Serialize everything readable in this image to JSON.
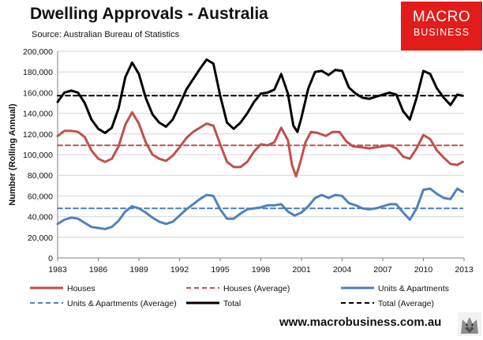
{
  "header": {
    "title": "Dwelling Approvals - Australia",
    "source": "Source: Australian Bureau of Statistics"
  },
  "logo": {
    "line1": "MACRO",
    "line2": "BUSINESS",
    "color": "#e21b1b"
  },
  "footer": {
    "url": "www.macrobusiness.com.au",
    "icon": "wolf-logo-icon"
  },
  "chart_data": {
    "type": "line",
    "title": "Dwelling Approvals - Australia",
    "xlabel": "",
    "ylabel": "Number (Rolling Annual)",
    "xlim": [
      1983,
      2013
    ],
    "ylim": [
      0,
      200000
    ],
    "x_ticks": [
      1983,
      1986,
      1989,
      1992,
      1995,
      1998,
      2001,
      2004,
      2007,
      2010,
      2013
    ],
    "y_ticks": [
      0,
      20000,
      40000,
      60000,
      80000,
      100000,
      120000,
      140000,
      160000,
      180000,
      200000
    ],
    "y_tick_labels": [
      "0",
      "20,000",
      "40,000",
      "60,000",
      "80,000",
      "100,000",
      "120,000",
      "140,000",
      "160,000",
      "180,000",
      "200,000"
    ],
    "grid": "horizontal",
    "legend_position": "bottom",
    "series": [
      {
        "name": "Houses",
        "color": "#c0504d",
        "style": "solid",
        "points": [
          [
            1983.0,
            118000
          ],
          [
            1983.5,
            123000
          ],
          [
            1984.0,
            123000
          ],
          [
            1984.5,
            122000
          ],
          [
            1985.0,
            117000
          ],
          [
            1985.5,
            104000
          ],
          [
            1986.0,
            96000
          ],
          [
            1986.5,
            93000
          ],
          [
            1987.0,
            96000
          ],
          [
            1987.5,
            108000
          ],
          [
            1988.0,
            129000
          ],
          [
            1988.5,
            141000
          ],
          [
            1989.0,
            130000
          ],
          [
            1989.5,
            112000
          ],
          [
            1990.0,
            100000
          ],
          [
            1990.5,
            96000
          ],
          [
            1991.0,
            94000
          ],
          [
            1991.5,
            99000
          ],
          [
            1992.0,
            107000
          ],
          [
            1992.5,
            116000
          ],
          [
            1993.0,
            122000
          ],
          [
            1993.5,
            126000
          ],
          [
            1994.0,
            130000
          ],
          [
            1994.5,
            128000
          ],
          [
            1995.0,
            110000
          ],
          [
            1995.5,
            93000
          ],
          [
            1996.0,
            88000
          ],
          [
            1996.5,
            88000
          ],
          [
            1997.0,
            93000
          ],
          [
            1997.5,
            103000
          ],
          [
            1998.0,
            110000
          ],
          [
            1998.5,
            109000
          ],
          [
            1999.0,
            112000
          ],
          [
            1999.5,
            126000
          ],
          [
            2000.0,
            114000
          ],
          [
            2000.3,
            90000
          ],
          [
            2000.6,
            79000
          ],
          [
            2000.9,
            92000
          ],
          [
            2001.3,
            112000
          ],
          [
            2001.7,
            122000
          ],
          [
            2002.2,
            121000
          ],
          [
            2002.8,
            118000
          ],
          [
            2003.3,
            122000
          ],
          [
            2003.8,
            122000
          ],
          [
            2004.3,
            113000
          ],
          [
            2004.8,
            108000
          ],
          [
            2005.5,
            107000
          ],
          [
            2006.0,
            106000
          ],
          [
            2006.5,
            107000
          ],
          [
            2007.0,
            108000
          ],
          [
            2007.5,
            109000
          ],
          [
            2008.0,
            106000
          ],
          [
            2008.5,
            98000
          ],
          [
            2009.0,
            96000
          ],
          [
            2009.5,
            106000
          ],
          [
            2010.0,
            119000
          ],
          [
            2010.5,
            115000
          ],
          [
            2011.0,
            104000
          ],
          [
            2011.5,
            97000
          ],
          [
            2012.0,
            91000
          ],
          [
            2012.5,
            90000
          ],
          [
            2012.9,
            93000
          ]
        ]
      },
      {
        "name": "Houses (Average)",
        "color": "#c0504d",
        "style": "dashed",
        "points": [
          [
            1983.0,
            109000
          ],
          [
            2012.9,
            109000
          ]
        ]
      },
      {
        "name": "Units & Apartments",
        "color": "#4f81bd",
        "style": "solid",
        "points": [
          [
            1983.0,
            33000
          ],
          [
            1983.5,
            37000
          ],
          [
            1984.0,
            39000
          ],
          [
            1984.5,
            38000
          ],
          [
            1985.0,
            34000
          ],
          [
            1985.5,
            30000
          ],
          [
            1986.0,
            29000
          ],
          [
            1986.5,
            28000
          ],
          [
            1987.0,
            30000
          ],
          [
            1987.5,
            36000
          ],
          [
            1988.0,
            45000
          ],
          [
            1988.5,
            50000
          ],
          [
            1989.0,
            48000
          ],
          [
            1989.5,
            44000
          ],
          [
            1990.0,
            39000
          ],
          [
            1990.5,
            35000
          ],
          [
            1991.0,
            33000
          ],
          [
            1991.5,
            35000
          ],
          [
            1992.0,
            41000
          ],
          [
            1992.5,
            47000
          ],
          [
            1993.0,
            52000
          ],
          [
            1993.5,
            57000
          ],
          [
            1994.0,
            61000
          ],
          [
            1994.5,
            60000
          ],
          [
            1995.0,
            47000
          ],
          [
            1995.5,
            38000
          ],
          [
            1996.0,
            38000
          ],
          [
            1996.5,
            43000
          ],
          [
            1997.0,
            47000
          ],
          [
            1997.5,
            48000
          ],
          [
            1998.0,
            49000
          ],
          [
            1998.5,
            51000
          ],
          [
            1999.0,
            51000
          ],
          [
            1999.5,
            52000
          ],
          [
            2000.0,
            45000
          ],
          [
            2000.5,
            41000
          ],
          [
            2001.0,
            44000
          ],
          [
            2001.5,
            50000
          ],
          [
            2002.0,
            58000
          ],
          [
            2002.5,
            61000
          ],
          [
            2003.0,
            58000
          ],
          [
            2003.5,
            61000
          ],
          [
            2004.0,
            60000
          ],
          [
            2004.5,
            53000
          ],
          [
            2005.0,
            51000
          ],
          [
            2005.5,
            48000
          ],
          [
            2006.0,
            47000
          ],
          [
            2006.5,
            48000
          ],
          [
            2007.0,
            50000
          ],
          [
            2007.5,
            52000
          ],
          [
            2008.0,
            52000
          ],
          [
            2008.5,
            44000
          ],
          [
            2009.0,
            37000
          ],
          [
            2009.5,
            48000
          ],
          [
            2010.0,
            66000
          ],
          [
            2010.5,
            67000
          ],
          [
            2011.0,
            62000
          ],
          [
            2011.5,
            58000
          ],
          [
            2012.0,
            57000
          ],
          [
            2012.5,
            67000
          ],
          [
            2012.9,
            64000
          ]
        ]
      },
      {
        "name": "Units & Apartments (Average)",
        "color": "#4f81bd",
        "style": "dashed",
        "points": [
          [
            1983.0,
            48000
          ],
          [
            2012.9,
            48000
          ]
        ]
      },
      {
        "name": "Total",
        "color": "#000000",
        "style": "solid",
        "points": [
          [
            1983.0,
            151000
          ],
          [
            1983.5,
            160000
          ],
          [
            1984.0,
            162000
          ],
          [
            1984.5,
            160000
          ],
          [
            1985.0,
            150000
          ],
          [
            1985.5,
            134000
          ],
          [
            1986.0,
            125000
          ],
          [
            1986.5,
            121000
          ],
          [
            1987.0,
            126000
          ],
          [
            1987.5,
            145000
          ],
          [
            1988.0,
            175000
          ],
          [
            1988.5,
            189000
          ],
          [
            1989.0,
            178000
          ],
          [
            1989.5,
            155000
          ],
          [
            1990.0,
            139000
          ],
          [
            1990.5,
            131000
          ],
          [
            1991.0,
            127000
          ],
          [
            1991.5,
            134000
          ],
          [
            1992.0,
            148000
          ],
          [
            1992.5,
            163000
          ],
          [
            1993.0,
            173000
          ],
          [
            1993.5,
            183000
          ],
          [
            1994.0,
            192000
          ],
          [
            1994.5,
            188000
          ],
          [
            1995.0,
            157000
          ],
          [
            1995.5,
            131000
          ],
          [
            1996.0,
            125000
          ],
          [
            1996.5,
            131000
          ],
          [
            1997.0,
            140000
          ],
          [
            1997.5,
            151000
          ],
          [
            1998.0,
            159000
          ],
          [
            1998.5,
            160000
          ],
          [
            1999.0,
            163000
          ],
          [
            1999.5,
            178000
          ],
          [
            2000.0,
            159000
          ],
          [
            2000.4,
            128000
          ],
          [
            2000.7,
            122000
          ],
          [
            2001.0,
            136000
          ],
          [
            2001.5,
            164000
          ],
          [
            2002.0,
            180000
          ],
          [
            2002.5,
            181000
          ],
          [
            2003.0,
            177000
          ],
          [
            2003.5,
            182000
          ],
          [
            2004.0,
            181000
          ],
          [
            2004.5,
            165000
          ],
          [
            2005.0,
            159000
          ],
          [
            2005.5,
            155000
          ],
          [
            2006.0,
            154000
          ],
          [
            2006.5,
            156000
          ],
          [
            2007.0,
            158000
          ],
          [
            2007.5,
            160000
          ],
          [
            2008.0,
            158000
          ],
          [
            2008.5,
            142000
          ],
          [
            2009.0,
            134000
          ],
          [
            2009.5,
            155000
          ],
          [
            2010.0,
            181000
          ],
          [
            2010.5,
            178000
          ],
          [
            2011.0,
            164000
          ],
          [
            2011.5,
            155000
          ],
          [
            2012.0,
            148000
          ],
          [
            2012.5,
            158000
          ],
          [
            2012.9,
            157000
          ]
        ]
      },
      {
        "name": "Total (Average)",
        "color": "#000000",
        "style": "dashed",
        "points": [
          [
            1983.0,
            157000
          ],
          [
            2012.9,
            157000
          ]
        ]
      }
    ]
  }
}
